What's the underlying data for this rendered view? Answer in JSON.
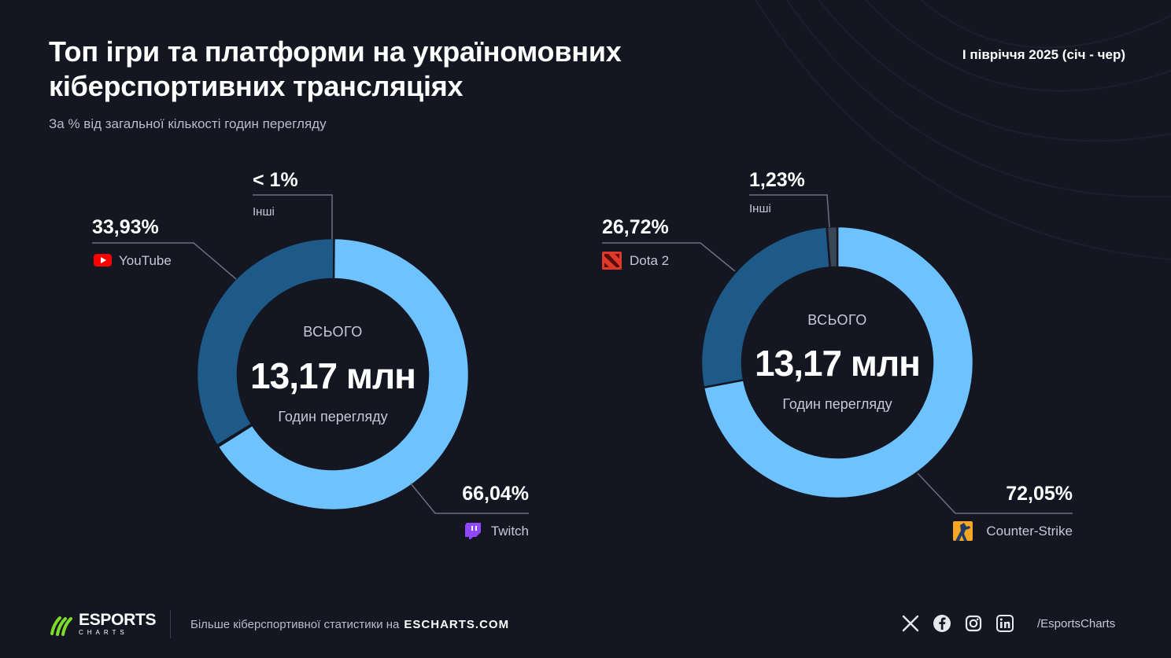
{
  "header": {
    "title": "Топ ігри та платформи на україномовних кіберспортивних трансляціях",
    "subtitle": "За % від загальної кількості годин перегляду",
    "period": "I півріччя 2025 (січ - чер)"
  },
  "chart_data": [
    {
      "type": "pie",
      "variant": "donut",
      "center": {
        "top": "ВСЬОГО",
        "value": "13,17 млн",
        "bottom": "Годин перегляду"
      },
      "slices": [
        {
          "name": "Twitch",
          "value": 66.04,
          "label": "66,04%",
          "color": "#6ec3ff",
          "icon": "twitch-icon"
        },
        {
          "name": "Інші",
          "value": 0.03,
          "label": "< 1%",
          "color": "#2a3a4d",
          "icon": ""
        },
        {
          "name": "YouTube",
          "value": 33.93,
          "label": "33,93%",
          "color": "#1e5a88",
          "icon": "youtube-icon"
        }
      ]
    },
    {
      "type": "pie",
      "variant": "donut",
      "center": {
        "top": "ВСЬОГО",
        "value": "13,17 млн",
        "bottom": "Годин перегляду"
      },
      "slices": [
        {
          "name": "Counter-Strike",
          "value": 72.05,
          "label": "72,05%",
          "color": "#6ec3ff",
          "icon": "counter-strike-icon"
        },
        {
          "name": "Dota 2",
          "value": 26.72,
          "label": "26,72%",
          "color": "#1e5a88",
          "icon": "dota2-icon"
        },
        {
          "name": "Інші",
          "value": 1.23,
          "label": "1,23%",
          "color": "#3a4656",
          "icon": ""
        }
      ]
    }
  ],
  "footer": {
    "logo_main": "ESPORTS",
    "logo_sub": "CHARTS",
    "promo_text": "Більше кіберспортивної статистики на",
    "promo_site": "ESCHARTS.COM",
    "socials": [
      "x-icon",
      "facebook-icon",
      "instagram-icon",
      "linkedin-icon"
    ],
    "handle": "/EsportsCharts"
  }
}
